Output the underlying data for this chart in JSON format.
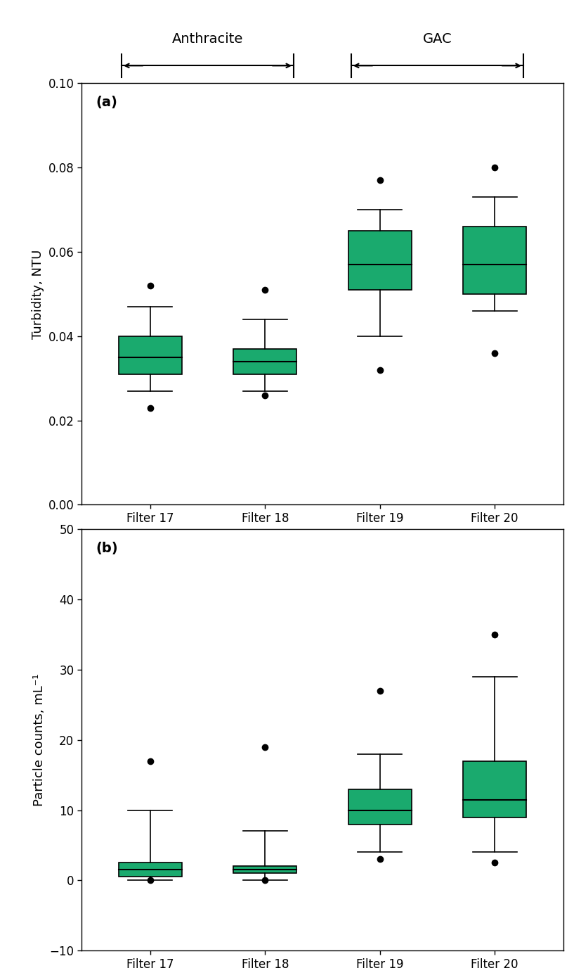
{
  "categories": [
    "Filter 17",
    "Filter 18",
    "Filter 19",
    "Filter 20"
  ],
  "panel_a": {
    "ylabel": "Turbidity, NTU",
    "ylim": [
      0.0,
      0.1
    ],
    "yticks": [
      0.0,
      0.02,
      0.04,
      0.06,
      0.08,
      0.1
    ],
    "boxes": [
      {
        "whisker_low": 0.027,
        "q1": 0.031,
        "median": 0.035,
        "q3": 0.04,
        "whisker_high": 0.047,
        "outliers": [
          0.023,
          0.052
        ]
      },
      {
        "whisker_low": 0.027,
        "q1": 0.031,
        "median": 0.034,
        "q3": 0.037,
        "whisker_high": 0.044,
        "outliers": [
          0.026,
          0.051
        ]
      },
      {
        "whisker_low": 0.04,
        "q1": 0.051,
        "median": 0.057,
        "q3": 0.065,
        "whisker_high": 0.07,
        "outliers": [
          0.032,
          0.077
        ]
      },
      {
        "whisker_low": 0.046,
        "q1": 0.05,
        "median": 0.057,
        "q3": 0.066,
        "whisker_high": 0.073,
        "outliers": [
          0.036,
          0.08
        ]
      }
    ]
  },
  "panel_b": {
    "ylabel": "Particle counts, mL⁻¹",
    "ylim": [
      -10,
      50
    ],
    "yticks": [
      -10,
      0,
      10,
      20,
      30,
      40,
      50
    ],
    "boxes": [
      {
        "whisker_low": 0.0,
        "q1": 0.5,
        "median": 1.5,
        "q3": 2.5,
        "whisker_high": 10.0,
        "outliers": [
          0.0,
          17.0
        ]
      },
      {
        "whisker_low": 0.0,
        "q1": 1.0,
        "median": 1.5,
        "q3": 2.0,
        "whisker_high": 7.0,
        "outliers": [
          0.0,
          19.0
        ]
      },
      {
        "whisker_low": 4.0,
        "q1": 8.0,
        "median": 10.0,
        "q3": 13.0,
        "whisker_high": 18.0,
        "outliers": [
          3.0,
          27.0
        ]
      },
      {
        "whisker_low": 4.0,
        "q1": 9.0,
        "median": 11.5,
        "q3": 17.0,
        "whisker_high": 29.0,
        "outliers": [
          2.5,
          35.0
        ]
      }
    ]
  },
  "box_color": "#1aaa6e",
  "box_edge_color": "#000000",
  "median_color": "#000000",
  "whisker_color": "#000000",
  "outlier_color": "#000000",
  "box_width": 0.55,
  "anthracite_label": "Anthracite",
  "gac_label": "GAC",
  "label_a": "(a)",
  "label_b": "(b)",
  "figsize": [
    8.27,
    13.93
  ],
  "dpi": 100
}
